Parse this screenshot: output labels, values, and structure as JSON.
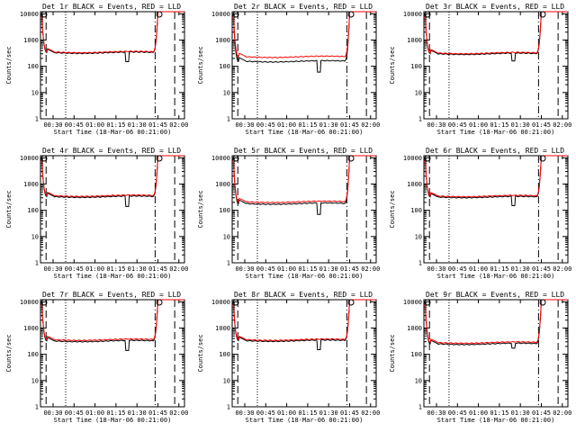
{
  "colors": {
    "events": "#000000",
    "lld": "#ff0000",
    "background": "#ffffff"
  },
  "chart_data": {
    "type": "line",
    "scale_y": "log",
    "xlabel": "Start Time (18-Mar-06 00:21:00)",
    "ylabel": "Counts/sec",
    "x_tick_labels": [
      "00:30",
      "00:45",
      "01:00",
      "01:15",
      "01:30",
      "01:45",
      "02:00"
    ],
    "x_tick_minutes": [
      30,
      45,
      60,
      75,
      90,
      105,
      120
    ],
    "xlim_minutes": [
      21,
      124
    ],
    "y_tick_labels": [
      "1",
      "10",
      "100",
      "1000",
      "10000"
    ],
    "ylim": [
      1,
      12000
    ],
    "grid": false,
    "legend": "none",
    "markers_minutes": {
      "dashed": [
        25,
        117
      ],
      "dotted": [
        39
      ],
      "dashdot": [
        103
      ]
    },
    "panels": [
      {
        "title": "Det 1r BLACK = Events, RED = LLD",
        "events_level": 330,
        "lld_level": 350,
        "dip": [
          83,
          150
        ],
        "peak": 12000
      },
      {
        "title": "Det 2r BLACK = Events, RED = LLD",
        "events_level": 155,
        "lld_level": 230,
        "dip": [
          83,
          60
        ],
        "peak": 12000
      },
      {
        "title": "Det 3r BLACK = Events, RED = LLD",
        "events_level": 300,
        "lld_level": 320,
        "dip": [
          85,
          160
        ],
        "peak": 12000
      },
      {
        "title": "Det 4r BLACK = Events, RED = LLD",
        "events_level": 330,
        "lld_level": 360,
        "dip": [
          83,
          140
        ],
        "peak": 12000
      },
      {
        "title": "Det 5r BLACK = Events, RED = LLD",
        "events_level": 180,
        "lld_level": 210,
        "dip": [
          83,
          70
        ],
        "peak": 12000
      },
      {
        "title": "Det 6r BLACK = Events, RED = LLD",
        "events_level": 320,
        "lld_level": 350,
        "dip": [
          85,
          150
        ],
        "peak": 12000
      },
      {
        "title": "Det 7r BLACK = Events, RED = LLD",
        "events_level": 320,
        "lld_level": 360,
        "dip": [
          83,
          140
        ],
        "peak": 12000
      },
      {
        "title": "Det 8r BLACK = Events, RED = LLD",
        "events_level": 330,
        "lld_level": 360,
        "dip": [
          83,
          150
        ],
        "peak": 12000
      },
      {
        "title": "Det 9r BLACK = Events, RED = LLD",
        "events_level": 250,
        "lld_level": 280,
        "dip": [
          85,
          170
        ],
        "peak": 12000
      }
    ]
  }
}
